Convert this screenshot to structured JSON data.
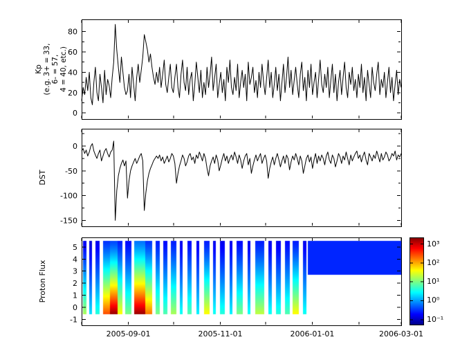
{
  "figure": {
    "bg": "#ffffff",
    "fg": "#000000"
  },
  "x_axis": {
    "day_span": 212,
    "x_start": "2005-08-01",
    "x_end": "2006-03-01",
    "tick_labels": [
      "2005-09-01",
      "2005-11-01",
      "2006-01-01",
      "2006-03-01"
    ],
    "tick_days": [
      31,
      92,
      153,
      212
    ],
    "month_tick_days": [
      0,
      31,
      61,
      92,
      122,
      153,
      184,
      212
    ]
  },
  "chart_data": [
    {
      "type": "line",
      "name": "kp",
      "ylabel_lines": [
        "Kp",
        "(e.g. 3+ = 33,",
        "6- = 57,",
        "4 = 40, etc.)"
      ],
      "ylim": [
        -6,
        92
      ],
      "yticks": [
        0,
        20,
        40,
        60,
        80
      ],
      "ytick_labels": [
        "0",
        "20",
        "40",
        "60",
        "80"
      ],
      "yminor": [
        10,
        30,
        50,
        70
      ],
      "line_color": "#000000",
      "values": [
        12,
        25,
        18,
        35,
        22,
        40,
        15,
        8,
        30,
        45,
        20,
        12,
        38,
        25,
        10,
        42,
        18,
        33,
        27,
        15,
        35,
        50,
        87,
        62,
        45,
        30,
        55,
        40,
        25,
        18,
        22,
        38,
        15,
        45,
        28,
        12,
        35,
        48,
        30,
        42,
        55,
        77,
        70,
        62,
        50,
        58,
        45,
        35,
        28,
        40,
        30,
        45,
        25,
        38,
        52,
        28,
        20,
        35,
        48,
        25,
        20,
        35,
        48,
        25,
        15,
        38,
        52,
        30,
        22,
        45,
        18,
        33,
        40,
        12,
        28,
        50,
        35,
        20,
        42,
        15,
        30,
        18,
        45,
        25,
        38,
        55,
        22,
        35,
        48,
        15,
        28,
        40,
        20,
        33,
        12,
        45,
        30,
        52,
        25,
        18,
        35,
        22,
        48,
        15,
        30,
        42,
        25,
        38,
        12,
        50,
        28,
        35,
        45,
        20,
        32,
        15,
        40,
        25,
        48,
        30,
        18,
        35,
        52,
        25,
        40,
        15,
        28,
        45,
        22,
        38,
        12,
        30,
        48,
        20,
        35,
        55,
        25,
        42,
        18,
        32,
        45,
        28,
        15,
        38,
        50,
        22,
        35,
        12,
        42,
        25,
        48,
        18,
        30,
        40,
        15,
        33,
        52,
        28,
        20,
        38,
        25,
        45,
        15,
        32,
        48,
        20,
        38,
        12,
        30,
        42,
        18,
        35,
        50,
        25,
        15,
        40,
        28,
        45,
        22,
        33,
        15,
        38,
        25,
        48,
        20,
        35,
        12,
        42,
        28,
        15,
        45,
        30,
        22,
        38,
        50,
        18,
        33,
        25,
        40,
        15,
        30,
        45,
        20,
        35,
        12,
        28,
        42,
        18,
        33,
        25
      ]
    },
    {
      "type": "line",
      "name": "dst",
      "ylabel": "DST",
      "ylim": [
        -162,
        35
      ],
      "yticks": [
        0,
        -50,
        -100,
        -150
      ],
      "ytick_labels": [
        "0",
        "-50",
        "-100",
        "-150"
      ],
      "yminor": [
        25,
        -25,
        -75,
        -125
      ],
      "line_color": "#000000",
      "values": [
        -10,
        -5,
        -15,
        -8,
        -20,
        -12,
        0,
        5,
        -10,
        -18,
        -25,
        -15,
        -8,
        -30,
        -20,
        -10,
        -5,
        -15,
        -22,
        -12,
        -8,
        10,
        -150,
        -90,
        -60,
        -45,
        -35,
        -28,
        -40,
        -30,
        -105,
        -70,
        -50,
        -40,
        -32,
        -25,
        -35,
        -28,
        -20,
        -15,
        -30,
        -130,
        -95,
        -70,
        -55,
        -45,
        -38,
        -30,
        -25,
        -20,
        -25,
        -18,
        -30,
        -22,
        -35,
        -28,
        -20,
        -32,
        -25,
        -15,
        -20,
        -35,
        -75,
        -55,
        -40,
        -30,
        -18,
        -25,
        -40,
        -32,
        -20,
        -15,
        -28,
        -22,
        -35,
        -18,
        -25,
        -12,
        -20,
        -30,
        -15,
        -25,
        -45,
        -60,
        -40,
        -30,
        -22,
        -35,
        -18,
        -28,
        -50,
        -38,
        -25,
        -15,
        -30,
        -20,
        -35,
        -25,
        -18,
        -28,
        -12,
        -22,
        -35,
        -18,
        -28,
        -45,
        -30,
        -20,
        -15,
        -38,
        -25,
        -55,
        -40,
        -28,
        -18,
        -30,
        -22,
        -15,
        -35,
        -25,
        -18,
        -30,
        -65,
        -45,
        -32,
        -22,
        -38,
        -25,
        -15,
        -28,
        -42,
        -30,
        -20,
        -35,
        -18,
        -25,
        -48,
        -32,
        -20,
        -28,
        -15,
        -25,
        -38,
        -20,
        -30,
        -55,
        -40,
        -25,
        -18,
        -32,
        -22,
        -45,
        -28,
        -15,
        -35,
        -20,
        -30,
        -18,
        -25,
        -38,
        -20,
        -12,
        -28,
        -35,
        -18,
        -25,
        -42,
        -30,
        -15,
        -22,
        -35,
        -20,
        -28,
        -12,
        -25,
        -38,
        -18,
        -30,
        -22,
        -15,
        -10,
        -25,
        -18,
        -32,
        -20,
        -12,
        -28,
        -38,
        -15,
        -22,
        -30,
        -18,
        -25,
        -10,
        -20,
        -32,
        -15,
        -28,
        -22,
        -12,
        -18,
        -30,
        -25,
        -15,
        -20,
        -10,
        -28,
        -18,
        -22,
        -15
      ]
    },
    {
      "type": "heatmap",
      "name": "proton_flux",
      "ylabel": "Proton Flux",
      "ylim": [
        -1.5,
        5.8
      ],
      "yticks": [
        -1,
        0,
        1,
        2,
        3,
        4,
        5
      ],
      "ytick_labels": [
        "-1",
        "0",
        "1",
        "2",
        "3",
        "4",
        "5"
      ],
      "value_scale": "log10_flux",
      "seg_ylo": -0.5,
      "seg_yhi": 5.5,
      "segments": [
        [
          1,
          3,
          1.2,
          -0.8
        ],
        [
          5,
          7,
          0.3,
          -0.9
        ],
        [
          9,
          12,
          0.6,
          -0.8
        ],
        [
          14,
          19,
          2.4,
          -0.5
        ],
        [
          19,
          24,
          3.2,
          -0.4
        ],
        [
          24,
          27,
          1.6,
          -0.6
        ],
        [
          29,
          33,
          1.0,
          -0.7
        ],
        [
          35,
          42,
          3.2,
          -0.2
        ],
        [
          42,
          47,
          2.2,
          -0.5
        ],
        [
          49,
          52,
          1.0,
          -0.6
        ],
        [
          54,
          57,
          0.8,
          -0.7
        ],
        [
          59,
          63,
          1.2,
          -0.6
        ],
        [
          65,
          67,
          0.5,
          -0.8
        ],
        [
          70,
          73,
          0.8,
          -0.7
        ],
        [
          76,
          78,
          0.4,
          -0.8
        ],
        [
          81,
          85,
          1.6,
          -0.6
        ],
        [
          87,
          89,
          0.5,
          -0.8
        ],
        [
          92,
          95,
          0.6,
          -0.8
        ],
        [
          98,
          100,
          0.4,
          -0.8
        ],
        [
          103,
          107,
          1.0,
          -0.7
        ],
        [
          110,
          112,
          0.5,
          -0.8
        ],
        [
          115,
          121,
          1.3,
          -0.6
        ],
        [
          124,
          126,
          0.5,
          -0.8
        ],
        [
          129,
          132,
          0.6,
          -0.8
        ],
        [
          135,
          138,
          0.8,
          -0.7
        ],
        [
          140,
          144,
          1.6,
          -0.6
        ],
        [
          147,
          149,
          0.5,
          -0.8
        ]
      ],
      "band": {
        "d0": 150,
        "d1": 212,
        "y0": 2.7,
        "y1": 5.5,
        "v": -0.55
      },
      "colorbar": {
        "tick_labels": [
          "10³",
          "10²",
          "10¹",
          "10⁰",
          "10⁻¹"
        ],
        "tick_exponents": [
          3,
          2,
          1,
          0,
          -1
        ],
        "vlim": [
          -1.3,
          3.35
        ],
        "colormap": "jet"
      }
    }
  ]
}
